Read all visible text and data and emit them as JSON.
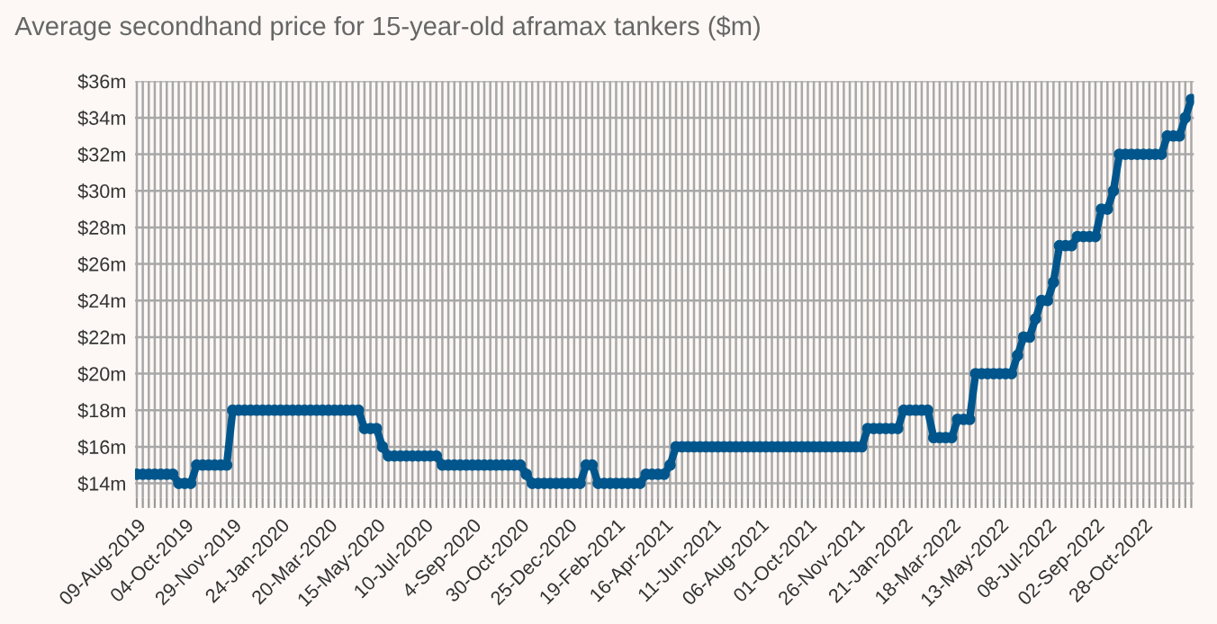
{
  "chart_data": {
    "type": "line",
    "title": "Average secondhand price for 15-year-old aframax tankers ($m)",
    "x": [
      "2019-08-09",
      "2019-08-16",
      "2019-08-23",
      "2019-08-30",
      "2019-09-06",
      "2019-09-13",
      "2019-09-20",
      "2019-09-27",
      "2019-10-04",
      "2019-10-11",
      "2019-10-18",
      "2019-10-25",
      "2019-11-01",
      "2019-11-08",
      "2019-11-15",
      "2019-11-22",
      "2019-11-29",
      "2019-12-06",
      "2019-12-13",
      "2019-12-20",
      "2019-12-27",
      "2020-01-03",
      "2020-01-10",
      "2020-01-17",
      "2020-01-24",
      "2020-01-31",
      "2020-02-07",
      "2020-02-14",
      "2020-02-21",
      "2020-02-28",
      "2020-03-06",
      "2020-03-13",
      "2020-03-20",
      "2020-03-27",
      "2020-04-03",
      "2020-04-10",
      "2020-04-17",
      "2020-04-24",
      "2020-05-01",
      "2020-05-08",
      "2020-05-15",
      "2020-05-22",
      "2020-05-29",
      "2020-06-05",
      "2020-06-12",
      "2020-06-19",
      "2020-06-26",
      "2020-07-03",
      "2020-07-10",
      "2020-07-17",
      "2020-07-24",
      "2020-07-31",
      "2020-08-07",
      "2020-08-14",
      "2020-08-21",
      "2020-08-28",
      "2020-09-04",
      "2020-09-11",
      "2020-09-18",
      "2020-09-25",
      "2020-10-02",
      "2020-10-09",
      "2020-10-16",
      "2020-10-23",
      "2020-10-30",
      "2020-11-06",
      "2020-11-13",
      "2020-11-20",
      "2020-11-27",
      "2020-12-04",
      "2020-12-11",
      "2020-12-18",
      "2020-12-25",
      "2021-01-01",
      "2021-01-08",
      "2021-01-15",
      "2021-01-22",
      "2021-01-29",
      "2021-02-05",
      "2021-02-12",
      "2021-02-19",
      "2021-02-26",
      "2021-03-05",
      "2021-03-12",
      "2021-03-19",
      "2021-03-26",
      "2021-04-02",
      "2021-04-09",
      "2021-04-16",
      "2021-04-23",
      "2021-04-30",
      "2021-05-07",
      "2021-05-14",
      "2021-05-21",
      "2021-05-28",
      "2021-06-04",
      "2021-06-11",
      "2021-06-18",
      "2021-06-25",
      "2021-07-02",
      "2021-07-09",
      "2021-07-16",
      "2021-07-23",
      "2021-07-30",
      "2021-08-06",
      "2021-08-13",
      "2021-08-20",
      "2021-08-27",
      "2021-09-03",
      "2021-09-10",
      "2021-09-17",
      "2021-09-24",
      "2021-10-01",
      "2021-10-08",
      "2021-10-15",
      "2021-10-22",
      "2021-10-29",
      "2021-11-05",
      "2021-11-12",
      "2021-11-19",
      "2021-11-26",
      "2021-12-03",
      "2021-12-10",
      "2021-12-17",
      "2021-12-24",
      "2021-12-31",
      "2022-01-07",
      "2022-01-14",
      "2022-01-21",
      "2022-01-28",
      "2022-02-04",
      "2022-02-11",
      "2022-02-18",
      "2022-02-25",
      "2022-03-04",
      "2022-03-11",
      "2022-03-18",
      "2022-03-25",
      "2022-04-01",
      "2022-04-08",
      "2022-04-15",
      "2022-04-22",
      "2022-04-29",
      "2022-05-06",
      "2022-05-13",
      "2022-05-20",
      "2022-05-27",
      "2022-06-03",
      "2022-06-10",
      "2022-06-17",
      "2022-06-24",
      "2022-07-01",
      "2022-07-08",
      "2022-07-15",
      "2022-07-22",
      "2022-07-29",
      "2022-08-05",
      "2022-08-12",
      "2022-08-19",
      "2022-08-26",
      "2022-09-02",
      "2022-09-09",
      "2022-09-16",
      "2022-09-23",
      "2022-09-30",
      "2022-10-07",
      "2022-10-14",
      "2022-10-21",
      "2022-10-28",
      "2022-11-04",
      "2022-11-11",
      "2022-11-18",
      "2022-11-25",
      "2022-12-02",
      "2022-12-09",
      "2022-12-16",
      "2022-12-23"
    ],
    "series": [
      {
        "color": "#00568c",
        "values": [
          14.5,
          14.5,
          14.5,
          14.5,
          14.5,
          14.5,
          14.5,
          14,
          14,
          14,
          15,
          15,
          15,
          15,
          15,
          15,
          18,
          18,
          18,
          18,
          18,
          18,
          18,
          18,
          18,
          18,
          18,
          18,
          18,
          18,
          18,
          18,
          18,
          18,
          18,
          18,
          18,
          18,
          17,
          17,
          17,
          16,
          15.5,
          15.5,
          15.5,
          15.5,
          15.5,
          15.5,
          15.5,
          15.5,
          15.5,
          15,
          15,
          15,
          15,
          15,
          15,
          15,
          15,
          15,
          15,
          15,
          15,
          15,
          15,
          14.5,
          14,
          14,
          14,
          14,
          14,
          14,
          14,
          14,
          14,
          15,
          15,
          14,
          14,
          14,
          14,
          14,
          14,
          14,
          14,
          14.5,
          14.5,
          14.5,
          14.5,
          15,
          16,
          16,
          16,
          16,
          16,
          16,
          16,
          16,
          16,
          16,
          16,
          16,
          16,
          16,
          16,
          16,
          16,
          16,
          16,
          16,
          16,
          16,
          16,
          16,
          16,
          16,
          16,
          16,
          16,
          16,
          16,
          16,
          17,
          17,
          17,
          17,
          17,
          17,
          18,
          18,
          18,
          18,
          18,
          16.5,
          16.5,
          16.5,
          16.5,
          17.5,
          17.5,
          17.5,
          20,
          20,
          20,
          20,
          20,
          20,
          20,
          21,
          22,
          22,
          23,
          24,
          24,
          25,
          27,
          27,
          27,
          27.5,
          27.5,
          27.5,
          27.5,
          29,
          29,
          30,
          32,
          32,
          32,
          32,
          32,
          32,
          32,
          32,
          33,
          33,
          33,
          34,
          35
        ]
      }
    ],
    "marker": "circle",
    "line_style": "solid",
    "grid": true,
    "ylim": [
      13.2,
      36
    ],
    "yticks": [
      {
        "value": 14,
        "label": "$14m"
      },
      {
        "value": 16,
        "label": "$16m"
      },
      {
        "value": 18,
        "label": "$18m"
      },
      {
        "value": 20,
        "label": "$20m"
      },
      {
        "value": 22,
        "label": "$22m"
      },
      {
        "value": 24,
        "label": "$24m"
      },
      {
        "value": 26,
        "label": "$26m"
      },
      {
        "value": 28,
        "label": "$28m"
      },
      {
        "value": 30,
        "label": "$30m"
      },
      {
        "value": 32,
        "label": "$32m"
      },
      {
        "value": 34,
        "label": "$34m"
      },
      {
        "value": 36,
        "label": "$36m"
      }
    ],
    "xlim": [
      "2019-08-07",
      "2022-12-26"
    ],
    "xticks": [
      {
        "value": "2019-08-09",
        "label": "09-Aug-2019"
      },
      {
        "value": "2019-08-16",
        "label": null
      },
      {
        "value": "2019-08-23",
        "label": null
      },
      {
        "value": "2019-08-30",
        "label": null
      },
      {
        "value": "2019-09-06",
        "label": null
      },
      {
        "value": "2019-09-13",
        "label": null
      },
      {
        "value": "2019-09-20",
        "label": null
      },
      {
        "value": "2019-09-27",
        "label": null
      },
      {
        "value": "2019-10-04",
        "label": "04-Oct-2019"
      },
      {
        "value": "2019-10-11",
        "label": null
      },
      {
        "value": "2019-10-18",
        "label": null
      },
      {
        "value": "2019-10-25",
        "label": null
      },
      {
        "value": "2019-11-01",
        "label": null
      },
      {
        "value": "2019-11-08",
        "label": null
      },
      {
        "value": "2019-11-15",
        "label": null
      },
      {
        "value": "2019-11-22",
        "label": null
      },
      {
        "value": "2019-11-29",
        "label": "29-Nov-2019"
      },
      {
        "value": "2019-12-06",
        "label": null
      },
      {
        "value": "2019-12-13",
        "label": null
      },
      {
        "value": "2019-12-20",
        "label": null
      },
      {
        "value": "2019-12-27",
        "label": null
      },
      {
        "value": "2020-01-03",
        "label": null
      },
      {
        "value": "2020-01-10",
        "label": null
      },
      {
        "value": "2020-01-17",
        "label": null
      },
      {
        "value": "2020-01-24",
        "label": "24-Jan-2020"
      },
      {
        "value": "2020-01-31",
        "label": null
      },
      {
        "value": "2020-02-07",
        "label": null
      },
      {
        "value": "2020-02-14",
        "label": null
      },
      {
        "value": "2020-02-21",
        "label": null
      },
      {
        "value": "2020-02-28",
        "label": null
      },
      {
        "value": "2020-03-06",
        "label": null
      },
      {
        "value": "2020-03-13",
        "label": null
      },
      {
        "value": "2020-03-20",
        "label": "20-Mar-2020"
      },
      {
        "value": "2020-03-27",
        "label": null
      },
      {
        "value": "2020-04-03",
        "label": null
      },
      {
        "value": "2020-04-10",
        "label": null
      },
      {
        "value": "2020-04-17",
        "label": null
      },
      {
        "value": "2020-04-24",
        "label": null
      },
      {
        "value": "2020-05-01",
        "label": null
      },
      {
        "value": "2020-05-08",
        "label": null
      },
      {
        "value": "2020-05-15",
        "label": "15-May-2020"
      },
      {
        "value": "2020-05-22",
        "label": null
      },
      {
        "value": "2020-05-29",
        "label": null
      },
      {
        "value": "2020-06-05",
        "label": null
      },
      {
        "value": "2020-06-12",
        "label": null
      },
      {
        "value": "2020-06-19",
        "label": null
      },
      {
        "value": "2020-06-26",
        "label": null
      },
      {
        "value": "2020-07-03",
        "label": null
      },
      {
        "value": "2020-07-10",
        "label": "10-Jul-2020"
      },
      {
        "value": "2020-07-17",
        "label": null
      },
      {
        "value": "2020-07-24",
        "label": null
      },
      {
        "value": "2020-07-31",
        "label": null
      },
      {
        "value": "2020-08-07",
        "label": null
      },
      {
        "value": "2020-08-14",
        "label": null
      },
      {
        "value": "2020-08-21",
        "label": null
      },
      {
        "value": "2020-08-28",
        "label": null
      },
      {
        "value": "2020-09-04",
        "label": "4-Sep-2020"
      },
      {
        "value": "2020-09-11",
        "label": null
      },
      {
        "value": "2020-09-18",
        "label": null
      },
      {
        "value": "2020-09-25",
        "label": null
      },
      {
        "value": "2020-10-02",
        "label": null
      },
      {
        "value": "2020-10-09",
        "label": null
      },
      {
        "value": "2020-10-16",
        "label": null
      },
      {
        "value": "2020-10-23",
        "label": null
      },
      {
        "value": "2020-10-30",
        "label": "30-Oct-2020"
      },
      {
        "value": "2020-11-06",
        "label": null
      },
      {
        "value": "2020-11-13",
        "label": null
      },
      {
        "value": "2020-11-20",
        "label": null
      },
      {
        "value": "2020-11-27",
        "label": null
      },
      {
        "value": "2020-12-04",
        "label": null
      },
      {
        "value": "2020-12-11",
        "label": null
      },
      {
        "value": "2020-12-18",
        "label": null
      },
      {
        "value": "2020-12-25",
        "label": "25-Dec-2020"
      },
      {
        "value": "2021-01-01",
        "label": null
      },
      {
        "value": "2021-01-08",
        "label": null
      },
      {
        "value": "2021-01-15",
        "label": null
      },
      {
        "value": "2021-01-22",
        "label": null
      },
      {
        "value": "2021-01-29",
        "label": null
      },
      {
        "value": "2021-02-05",
        "label": null
      },
      {
        "value": "2021-02-12",
        "label": null
      },
      {
        "value": "2021-02-19",
        "label": "19-Feb-2021"
      },
      {
        "value": "2021-02-26",
        "label": null
      },
      {
        "value": "2021-03-05",
        "label": null
      },
      {
        "value": "2021-03-12",
        "label": null
      },
      {
        "value": "2021-03-19",
        "label": null
      },
      {
        "value": "2021-03-26",
        "label": null
      },
      {
        "value": "2021-04-02",
        "label": null
      },
      {
        "value": "2021-04-09",
        "label": null
      },
      {
        "value": "2021-04-16",
        "label": "16-Apr-2021"
      },
      {
        "value": "2021-04-23",
        "label": null
      },
      {
        "value": "2021-04-30",
        "label": null
      },
      {
        "value": "2021-05-07",
        "label": null
      },
      {
        "value": "2021-05-14",
        "label": null
      },
      {
        "value": "2021-05-21",
        "label": null
      },
      {
        "value": "2021-05-28",
        "label": null
      },
      {
        "value": "2021-06-04",
        "label": null
      },
      {
        "value": "2021-06-11",
        "label": "11-Jun-2021"
      },
      {
        "value": "2021-06-18",
        "label": null
      },
      {
        "value": "2021-06-25",
        "label": null
      },
      {
        "value": "2021-07-02",
        "label": null
      },
      {
        "value": "2021-07-09",
        "label": null
      },
      {
        "value": "2021-07-16",
        "label": null
      },
      {
        "value": "2021-07-23",
        "label": null
      },
      {
        "value": "2021-07-30",
        "label": null
      },
      {
        "value": "2021-08-06",
        "label": "06-Aug-2021"
      },
      {
        "value": "2021-08-13",
        "label": null
      },
      {
        "value": "2021-08-20",
        "label": null
      },
      {
        "value": "2021-08-27",
        "label": null
      },
      {
        "value": "2021-09-03",
        "label": null
      },
      {
        "value": "2021-09-10",
        "label": null
      },
      {
        "value": "2021-09-17",
        "label": null
      },
      {
        "value": "2021-09-24",
        "label": null
      },
      {
        "value": "2021-10-01",
        "label": "01-Oct-2021"
      },
      {
        "value": "2021-10-08",
        "label": null
      },
      {
        "value": "2021-10-15",
        "label": null
      },
      {
        "value": "2021-10-22",
        "label": null
      },
      {
        "value": "2021-10-29",
        "label": null
      },
      {
        "value": "2021-11-05",
        "label": null
      },
      {
        "value": "2021-11-12",
        "label": null
      },
      {
        "value": "2021-11-19",
        "label": null
      },
      {
        "value": "2021-11-26",
        "label": "26-Nov-2021"
      },
      {
        "value": "2021-12-03",
        "label": null
      },
      {
        "value": "2021-12-10",
        "label": null
      },
      {
        "value": "2021-12-17",
        "label": null
      },
      {
        "value": "2021-12-24",
        "label": null
      },
      {
        "value": "2021-12-31",
        "label": null
      },
      {
        "value": "2022-01-07",
        "label": null
      },
      {
        "value": "2022-01-14",
        "label": null
      },
      {
        "value": "2022-01-21",
        "label": "21-Jan-2022"
      },
      {
        "value": "2022-01-28",
        "label": null
      },
      {
        "value": "2022-02-04",
        "label": null
      },
      {
        "value": "2022-02-11",
        "label": null
      },
      {
        "value": "2022-02-18",
        "label": null
      },
      {
        "value": "2022-02-25",
        "label": null
      },
      {
        "value": "2022-03-04",
        "label": null
      },
      {
        "value": "2022-03-11",
        "label": null
      },
      {
        "value": "2022-03-18",
        "label": "18-Mar-2022"
      },
      {
        "value": "2022-03-25",
        "label": null
      },
      {
        "value": "2022-04-01",
        "label": null
      },
      {
        "value": "2022-04-08",
        "label": null
      },
      {
        "value": "2022-04-15",
        "label": null
      },
      {
        "value": "2022-04-22",
        "label": null
      },
      {
        "value": "2022-04-29",
        "label": null
      },
      {
        "value": "2022-05-06",
        "label": null
      },
      {
        "value": "2022-05-13",
        "label": "13-May-2022"
      },
      {
        "value": "2022-05-20",
        "label": null
      },
      {
        "value": "2022-05-27",
        "label": null
      },
      {
        "value": "2022-06-03",
        "label": null
      },
      {
        "value": "2022-06-10",
        "label": null
      },
      {
        "value": "2022-06-17",
        "label": null
      },
      {
        "value": "2022-06-24",
        "label": null
      },
      {
        "value": "2022-07-01",
        "label": null
      },
      {
        "value": "2022-07-08",
        "label": "08-Jul-2022"
      },
      {
        "value": "2022-07-15",
        "label": null
      },
      {
        "value": "2022-07-22",
        "label": null
      },
      {
        "value": "2022-07-29",
        "label": null
      },
      {
        "value": "2022-08-05",
        "label": null
      },
      {
        "value": "2022-08-12",
        "label": null
      },
      {
        "value": "2022-08-19",
        "label": null
      },
      {
        "value": "2022-08-26",
        "label": null
      },
      {
        "value": "2022-09-02",
        "label": "02-Sep-2022"
      },
      {
        "value": "2022-09-09",
        "label": null
      },
      {
        "value": "2022-09-16",
        "label": null
      },
      {
        "value": "2022-09-23",
        "label": null
      },
      {
        "value": "2022-09-30",
        "label": null
      },
      {
        "value": "2022-10-07",
        "label": null
      },
      {
        "value": "2022-10-14",
        "label": null
      },
      {
        "value": "2022-10-21",
        "label": null
      },
      {
        "value": "2022-10-28",
        "label": "28-Oct-2022"
      },
      {
        "value": "2022-11-04",
        "label": null
      },
      {
        "value": "2022-11-11",
        "label": null
      },
      {
        "value": "2022-11-18",
        "label": null
      },
      {
        "value": "2022-11-25",
        "label": null
      },
      {
        "value": "2022-12-02",
        "label": null
      },
      {
        "value": "2022-12-09",
        "label": null
      },
      {
        "value": "2022-12-16",
        "label": null
      },
      {
        "value": "2022-12-23",
        "label": null
      }
    ]
  }
}
